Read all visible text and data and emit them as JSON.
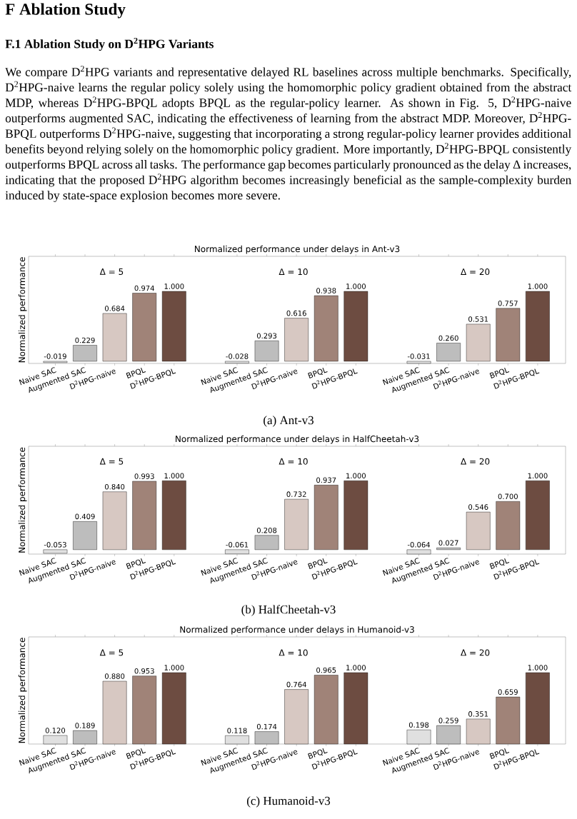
{
  "chart_data": [
    {
      "type": "bar",
      "title": "Normalized performance under delays in Ant-v3",
      "ylabel": "Normalized performance",
      "categories": [
        "Naive SAC",
        "Augmented SAC",
        "D$^{2}$HPG-naive",
        "BPQL",
        "D$^{2}$HPG-BPQL",
        "Naive SAC",
        "Augmented SAC",
        "D$^{2}$HPG-naive",
        "BPQL",
        "D$^{2}$HPG-BPQL",
        "Naive SAC",
        "Augmented SAC",
        "D$^{2}$HPG-naive",
        "BPQL",
        "D$^{2}$HPG-BPQL"
      ],
      "values": [
        -0.019,
        0.229,
        0.684,
        0.974,
        1.0,
        -0.028,
        0.293,
        0.616,
        0.938,
        1.0,
        -0.031,
        0.26,
        0.531,
        0.757,
        1.0
      ],
      "value_labels": [
        "-0.019",
        "0.229",
        "0.684",
        "0.974",
        "1.000",
        "-0.028",
        "0.293",
        "0.616",
        "0.938",
        "1.000",
        "-0.031",
        "0.260",
        "0.531",
        "0.757",
        "1.000"
      ],
      "colors": [
        "#e0e0e0",
        "#bdbdbd",
        "#d7c8c2",
        "#a08378",
        "#6d4c41",
        "#e0e0e0",
        "#bdbdbd",
        "#d7c8c2",
        "#a08378",
        "#6d4c41",
        "#e0e0e0",
        "#bdbdbd",
        "#d7c8c2",
        "#a08378",
        "#6d4c41"
      ],
      "annotations": [
        "F Ablation Study",
        "F.1 Ablation Study on D$^{2}$HPG Variants",
        "We compare D$^{2}$HPG variants and representative delayed RL baselines across multiple benchmarks. Specifically, D$^{2}$HPG-naive learns the regular policy solely using the homomorphic policy gradient obtained from the abstract MDP, whereas D$^{2}$HPG-BPQL adopts BPQL as the regular-policy learner. As shown in Fig. 5, D$^{2}$HPG-naive outperforms augmented SAC, indicating the effectiveness of learning from the abstract MDP. Moreover, D$^{2}$HPG-BPQL outperforms D$^{2}$HPG-naive, suggesting that incorporating a strong regular-policy learner provides additional benefits beyond relying solely on the homomorphic policy gradient. More importantly, D$^{2}$HPG-BPQL consistently outperforms BPQL across all tasks. The performance gap becomes particularly pronounced as the delay Δ increases, indicating that the proposed D$^{2}$HPG algorithm becomes increasingly beneficial as the sample-complexity burden induced by state-space explosion becomes more severe.",
        "Δ = 5",
        "Δ = 10",
        "Δ = 20",
        "(a) Ant-v3"
      ]
    },
    {
      "type": "bar",
      "title": "Normalized performance under delays in HalfCheetah-v3",
      "ylabel": "Normalized performance",
      "categories": [
        "Naive SAC",
        "Augmented SAC",
        "D$^{2}$HPG-naive",
        "BPQL",
        "D$^{2}$HPG-BPQL",
        "Naive SAC",
        "Augmented SAC",
        "D$^{2}$HPG-naive",
        "BPQL",
        "D$^{2}$HPG-BPQL",
        "Naive SAC",
        "Augmented SAC",
        "D$^{2}$HPG-naive",
        "BPQL",
        "D$^{2}$HPG-BPQL"
      ],
      "values": [
        -0.053,
        0.409,
        0.84,
        0.993,
        1.0,
        -0.061,
        0.208,
        0.732,
        0.937,
        1.0,
        -0.064,
        0.027,
        0.546,
        0.7,
        1.0
      ],
      "value_labels": [
        "-0.053",
        "0.409",
        "0.840",
        "0.993",
        "1.000",
        "-0.061",
        "0.208",
        "0.732",
        "0.937",
        "1.000",
        "-0.064",
        "0.027",
        "0.546",
        "0.700",
        "1.000"
      ],
      "colors": [
        "#e0e0e0",
        "#bdbdbd",
        "#d7c8c2",
        "#a08378",
        "#6d4c41",
        "#e0e0e0",
        "#bdbdbd",
        "#d7c8c2",
        "#a08378",
        "#6d4c41",
        "#e0e0e0",
        "#bdbdbd",
        "#d7c8c2",
        "#a08378",
        "#6d4c41"
      ],
      "annotations": [
        "Δ = 5",
        "Δ = 10",
        "Δ = 20",
        "(b) HalfCheetah-v3"
      ]
    },
    {
      "type": "bar",
      "title": "Normalized performance under delays in Humanoid-v3",
      "ylabel": "Normalized performance",
      "categories": [
        "Naive SAC",
        "Augmented SAC",
        "D$^{2}$HPG-naive",
        "BPQL",
        "D$^{2}$HPG-BPQL",
        "Naive SAC",
        "Augmented SAC",
        "D$^{2}$HPG-naive",
        "BPQL",
        "D$^{2}$HPG-BPQL",
        "Naive SAC",
        "Augmented SAC",
        "D$^{2}$HPG-naive",
        "BPQL",
        "D$^{2}$HPG-BPQL"
      ],
      "values": [
        0.12,
        0.189,
        0.88,
        0.953,
        1.0,
        0.118,
        0.174,
        0.764,
        0.965,
        1.0,
        0.198,
        0.259,
        0.351,
        0.659,
        1.0
      ],
      "value_labels": [
        "0.120",
        "0.189",
        "0.880",
        "0.953",
        "1.000",
        "0.118",
        "0.174",
        "0.764",
        "0.965",
        "1.000",
        "0.198",
        "0.259",
        "0.351",
        "0.659",
        "1.000"
      ],
      "colors": [
        "#e0e0e0",
        "#bdbdbd",
        "#d7c8c2",
        "#a08378",
        "#6d4c41",
        "#e0e0e0",
        "#bdbdbd",
        "#d7c8c2",
        "#a08378",
        "#6d4c41",
        "#e0e0e0",
        "#bdbdbd",
        "#d7c8c2",
        "#a08378",
        "#6d4c41"
      ],
      "annotations": [
        "Δ = 5",
        "Δ = 10",
        "Δ = 20",
        "(c) Humanoid-v3"
      ]
    }
  ]
}
